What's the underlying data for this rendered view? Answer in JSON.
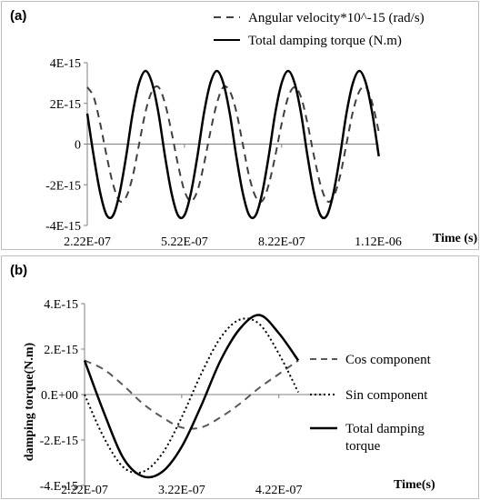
{
  "chart_data": [
    {
      "type": "line",
      "panel_label": "(a)",
      "xlabel": "Time (s)",
      "ylabel": "",
      "xlim": [
        2.22e-07,
        1.12e-06
      ],
      "ylim": [
        -4e-15,
        4e-15
      ],
      "x_ticks": [
        {
          "value": 2.22e-07,
          "label": "2.22E-07"
        },
        {
          "value": 5.22e-07,
          "label": "5.22E-07"
        },
        {
          "value": 8.22e-07,
          "label": "8.22E-07"
        },
        {
          "value": 1.12e-06,
          "label": "1.12E-06"
        }
      ],
      "y_ticks": [
        {
          "value": 4e-15,
          "label": "4E-15"
        },
        {
          "value": 2e-15,
          "label": "2E-15"
        },
        {
          "value": 0,
          "label": "0"
        },
        {
          "value": -2e-15,
          "label": "-2E-15"
        },
        {
          "value": -4e-15,
          "label": "-4E-15"
        }
      ],
      "grid": false,
      "legend_position": "top-right",
      "series": [
        {
          "name": "Angular velocity*10^-15 (rad/s)",
          "style": "dashed",
          "color": "#404040",
          "x": [
            2.22e-07,
            2.42e-07,
            2.62e-07,
            2.82e-07,
            3.02e-07,
            3.22e-07,
            3.42e-07,
            3.62e-07,
            3.82e-07,
            4.02e-07,
            4.22e-07,
            4.42e-07,
            4.62e-07,
            4.82e-07,
            5.02e-07,
            5.22e-07,
            5.42e-07,
            5.62e-07,
            5.82e-07,
            6.02e-07,
            6.22e-07,
            6.42e-07,
            6.62e-07,
            6.82e-07,
            7.02e-07,
            7.22e-07,
            7.42e-07,
            7.62e-07,
            7.82e-07,
            8.02e-07,
            8.22e-07,
            8.42e-07,
            8.62e-07,
            8.82e-07,
            9.02e-07,
            9.22e-07,
            9.42e-07,
            9.62e-07,
            9.82e-07,
            1.002e-06,
            1.022e-06,
            1.042e-06,
            1.062e-06,
            1.082e-06,
            1.102e-06,
            1.122e-06
          ],
          "y": [
            2.8e-15,
            2.3e-15,
            1e-15,
            -6e-16,
            -2e-15,
            -2.8e-15,
            -2.6e-15,
            -1.6e-15,
            0.0,
            1.6e-15,
            2.6e-15,
            2.8e-15,
            2e-15,
            6e-16,
            -1e-15,
            -2.3e-15,
            -2.8e-15,
            -2.3e-15,
            -1e-15,
            6e-16,
            2e-15,
            2.8e-15,
            2.6e-15,
            1.6e-15,
            0.0,
            -1.6e-15,
            -2.6e-15,
            -2.8e-15,
            -2e-15,
            -6e-16,
            1e-15,
            2.3e-15,
            2.8e-15,
            2.3e-15,
            1e-15,
            -6e-16,
            -2e-15,
            -2.8e-15,
            -2.6e-15,
            -1.6e-15,
            0.0,
            1.6e-15,
            2.6e-15,
            2.8e-15,
            2e-15,
            6e-16
          ]
        },
        {
          "name": "Total damping torque (N.m)",
          "style": "solid",
          "color": "#000000",
          "x": [
            2.22e-07,
            2.42e-07,
            2.62e-07,
            2.82e-07,
            3.02e-07,
            3.22e-07,
            3.42e-07,
            3.62e-07,
            3.82e-07,
            4.02e-07,
            4.22e-07,
            4.42e-07,
            4.62e-07,
            4.82e-07,
            5.02e-07,
            5.22e-07,
            5.42e-07,
            5.62e-07,
            5.82e-07,
            6.02e-07,
            6.22e-07,
            6.42e-07,
            6.62e-07,
            6.82e-07,
            7.02e-07,
            7.22e-07,
            7.42e-07,
            7.62e-07,
            7.82e-07,
            8.02e-07,
            8.22e-07,
            8.42e-07,
            8.62e-07,
            8.82e-07,
            9.02e-07,
            9.22e-07,
            9.42e-07,
            9.62e-07,
            9.82e-07,
            1.002e-06,
            1.022e-06,
            1.042e-06,
            1.062e-06,
            1.082e-06,
            1.102e-06,
            1.122e-06
          ],
          "y": [
            1.5e-15,
            -6e-16,
            -2.4e-15,
            -3.5e-15,
            -3.5e-15,
            -2.4e-15,
            -6e-16,
            1.5e-15,
            3e-15,
            3.6e-15,
            3e-15,
            1.5e-15,
            -6e-16,
            -2.4e-15,
            -3.5e-15,
            -3.5e-15,
            -2.4e-15,
            -6e-16,
            1.5e-15,
            3e-15,
            3.6e-15,
            3e-15,
            1.5e-15,
            -6e-16,
            -2.4e-15,
            -3.5e-15,
            -3.5e-15,
            -2.4e-15,
            -6e-16,
            1.5e-15,
            3e-15,
            3.6e-15,
            3e-15,
            1.5e-15,
            -6e-16,
            -2.4e-15,
            -3.5e-15,
            -3.5e-15,
            -2.4e-15,
            -6e-16,
            1.5e-15,
            3e-15,
            3.6e-15,
            3e-15,
            1.5e-15,
            -6e-16
          ]
        }
      ]
    },
    {
      "type": "line",
      "panel_label": "(b)",
      "xlabel": "Time(s)",
      "ylabel": "damping torque(N.m)",
      "xlim": [
        2.22e-07,
        4.7e-07
      ],
      "ylim": [
        -4e-15,
        4e-15
      ],
      "x_ticks": [
        {
          "value": 2.22e-07,
          "label": "2.22E-07"
        },
        {
          "value": 3.22e-07,
          "label": "3.22E-07"
        },
        {
          "value": 4.22e-07,
          "label": "4.22E-07"
        }
      ],
      "y_ticks": [
        {
          "value": 4e-15,
          "label": "4.E-15"
        },
        {
          "value": 2e-15,
          "label": "2.E-15"
        },
        {
          "value": 0,
          "label": "0.E+00"
        },
        {
          "value": -2e-15,
          "label": "-2.E-15"
        },
        {
          "value": -4e-15,
          "label": "-4.E-15"
        }
      ],
      "grid": false,
      "legend_position": "right",
      "series": [
        {
          "name": "Cos component",
          "style": "dashed",
          "color": "#595959",
          "x": [
            2.22e-07,
            2.42e-07,
            2.62e-07,
            2.82e-07,
            3.02e-07,
            3.22e-07,
            3.42e-07,
            3.62e-07,
            3.82e-07,
            4.02e-07,
            4.22e-07,
            4.42e-07
          ],
          "y": [
            1.5e-15,
            1.1e-15,
            4e-16,
            -4e-16,
            -1e-15,
            -1.45e-15,
            -1.45e-15,
            -1e-15,
            -4e-16,
            3e-16,
            9e-16,
            1.5e-15
          ]
        },
        {
          "name": "Sin component",
          "style": "dotted",
          "color": "#000000",
          "x": [
            2.22e-07,
            2.42e-07,
            2.62e-07,
            2.82e-07,
            3.02e-07,
            3.22e-07,
            3.42e-07,
            3.62e-07,
            3.82e-07,
            4.02e-07,
            4.22e-07,
            4.42e-07
          ],
          "y": [
            0.0,
            -1.9e-15,
            -3.2e-15,
            -3.4e-15,
            -2.6e-15,
            -1e-15,
            9e-16,
            2.5e-15,
            3.3e-15,
            3.1e-15,
            1.8e-15,
            1e-16
          ]
        },
        {
          "name": "Total damping torque",
          "style": "solid",
          "color": "#000000",
          "x": [
            2.22e-07,
            2.42e-07,
            2.62e-07,
            2.82e-07,
            3.02e-07,
            3.22e-07,
            3.42e-07,
            3.62e-07,
            3.82e-07,
            4.02e-07,
            4.22e-07,
            4.42e-07
          ],
          "y": [
            1.5e-15,
            -8e-16,
            -2.8e-15,
            -3.6e-15,
            -3.4e-15,
            -2.3e-15,
            -5e-16,
            1.5e-15,
            2.9e-15,
            3.5e-15,
            2.7e-15,
            1.5e-15
          ]
        }
      ]
    }
  ]
}
